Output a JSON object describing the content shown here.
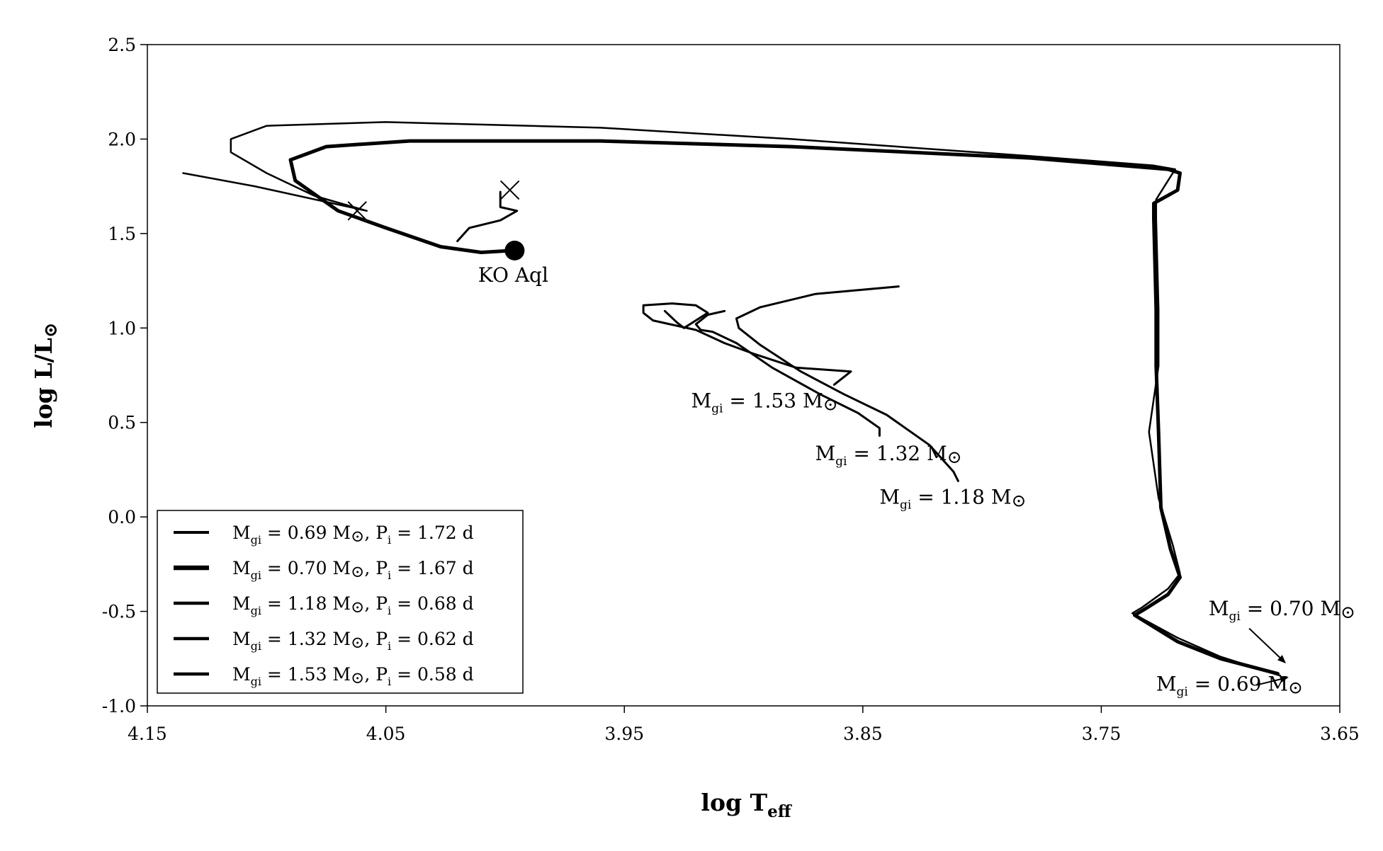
{
  "chart_data": {
    "type": "line",
    "xlabel": "log T",
    "xlabel_sub": "eff",
    "ylabel": "log L/L",
    "ylabel_symbol": "⊙",
    "xlim": [
      4.15,
      3.65
    ],
    "ylim": [
      -1.0,
      2.5
    ],
    "x_ticks": [
      "4.15",
      "4.05",
      "3.95",
      "3.85",
      "3.75",
      "3.65"
    ],
    "y_ticks": [
      "2.5",
      "2.0",
      "1.5",
      "1.0",
      "0.5",
      "0.0",
      "-0.5",
      "-1.0"
    ],
    "grid": false,
    "legend_placement": "lower-left",
    "series": [
      {
        "name": "M_gi = 0.69 M_sun, P_i = 1.72 d",
        "legend_parts": [
          "M",
          "gi",
          " = 0.69 M",
          "⊙",
          ", P",
          "i",
          " = 1.72 d"
        ],
        "color": "#000000",
        "width": 2.5,
        "points": [
          [
            3.675,
            -0.84
          ],
          [
            3.7,
            -0.74
          ],
          [
            3.718,
            -0.64
          ],
          [
            3.737,
            -0.51
          ],
          [
            3.733,
            -0.48
          ],
          [
            3.722,
            -0.38
          ],
          [
            3.717,
            -0.3
          ],
          [
            3.72,
            -0.15
          ],
          [
            3.726,
            0.1
          ],
          [
            3.73,
            0.45
          ],
          [
            3.726,
            0.8
          ],
          [
            3.726,
            1.1
          ],
          [
            3.727,
            1.58
          ],
          [
            3.727,
            1.68
          ],
          [
            3.722,
            1.78
          ],
          [
            3.719,
            1.84
          ],
          [
            3.728,
            1.86
          ],
          [
            3.78,
            1.91
          ],
          [
            3.88,
            2.0
          ],
          [
            3.96,
            2.06
          ],
          [
            4.05,
            2.09
          ],
          [
            4.1,
            2.07
          ],
          [
            4.115,
            2.0
          ],
          [
            4.115,
            1.93
          ],
          [
            4.1,
            1.82
          ],
          [
            4.08,
            1.7
          ],
          [
            4.058,
            1.62
          ],
          [
            4.105,
            1.75
          ],
          [
            4.135,
            1.82
          ]
        ]
      },
      {
        "name": "M_gi = 0.70 M_sun, P_i = 1.67 d",
        "legend_parts": [
          "M",
          "gi",
          " = 0.70 M",
          "⊙",
          ", P",
          "i",
          " = 1.67 d"
        ],
        "color": "#000000",
        "width": 5,
        "points": [
          [
            3.676,
            -0.83
          ],
          [
            3.7,
            -0.75
          ],
          [
            3.718,
            -0.66
          ],
          [
            3.736,
            -0.52
          ],
          [
            3.732,
            -0.49
          ],
          [
            3.722,
            -0.41
          ],
          [
            3.717,
            -0.32
          ],
          [
            3.721,
            -0.17
          ],
          [
            3.725,
            0.05
          ],
          [
            3.726,
            0.45
          ],
          [
            3.727,
            0.8
          ],
          [
            3.727,
            1.1
          ],
          [
            3.728,
            1.58
          ],
          [
            3.728,
            1.66
          ],
          [
            3.718,
            1.73
          ],
          [
            3.717,
            1.82
          ],
          [
            3.722,
            1.84
          ],
          [
            3.78,
            1.9
          ],
          [
            3.88,
            1.96
          ],
          [
            3.96,
            1.99
          ],
          [
            4.04,
            1.99
          ],
          [
            4.075,
            1.96
          ],
          [
            4.09,
            1.89
          ],
          [
            4.088,
            1.78
          ],
          [
            4.07,
            1.62
          ],
          [
            4.05,
            1.53
          ],
          [
            4.027,
            1.43
          ],
          [
            4.01,
            1.4
          ],
          [
            3.997,
            1.41
          ]
        ]
      },
      {
        "name": "M_gi = 1.18 M_sun, P_i = 0.68 d",
        "legend_parts": [
          "M",
          "gi",
          " = 1.18 M",
          "⊙",
          ", P",
          "i",
          " = 0.68 d"
        ],
        "color": "#000000",
        "width": 3,
        "points": [
          [
            3.81,
            0.19
          ],
          [
            3.812,
            0.24
          ],
          [
            3.822,
            0.38
          ],
          [
            3.84,
            0.54
          ],
          [
            3.858,
            0.65
          ],
          [
            3.876,
            0.77
          ],
          [
            3.893,
            0.91
          ],
          [
            3.902,
            1.0
          ],
          [
            3.903,
            1.05
          ],
          [
            3.893,
            1.11
          ],
          [
            3.87,
            1.18
          ],
          [
            3.835,
            1.22
          ]
        ]
      },
      {
        "name": "M_gi = 1.32 M_sun, P_i = 0.62 d",
        "legend_parts": [
          "M",
          "gi",
          " = 1.32 M",
          "⊙",
          ", P",
          "i",
          " = 0.62 d"
        ],
        "color": "#000000",
        "width": 3,
        "points": [
          [
            3.843,
            0.43
          ],
          [
            3.843,
            0.47
          ],
          [
            3.852,
            0.55
          ],
          [
            3.868,
            0.65
          ],
          [
            3.888,
            0.79
          ],
          [
            3.903,
            0.92
          ],
          [
            3.913,
            0.98
          ],
          [
            3.918,
            0.99
          ],
          [
            3.92,
            1.02
          ],
          [
            3.915,
            1.07
          ],
          [
            3.908,
            1.09
          ]
        ]
      },
      {
        "name": "M_gi = 1.53 M_sun, P_i = 0.58 d",
        "legend_parts": [
          "M",
          "gi",
          " = 1.53 M",
          "⊙",
          ", P",
          "i",
          " = 0.58 d"
        ],
        "color": "#000000",
        "width": 3,
        "points": [
          [
            3.862,
            0.7
          ],
          [
            3.855,
            0.77
          ],
          [
            3.878,
            0.79
          ],
          [
            3.895,
            0.86
          ],
          [
            3.908,
            0.92
          ],
          [
            3.92,
            0.99
          ],
          [
            3.931,
            1.02
          ],
          [
            3.938,
            1.04
          ],
          [
            3.942,
            1.08
          ],
          [
            3.942,
            1.12
          ],
          [
            3.93,
            1.13
          ],
          [
            3.92,
            1.12
          ],
          [
            3.915,
            1.08
          ],
          [
            3.925,
            1.0
          ],
          [
            3.928,
            1.03
          ],
          [
            3.933,
            1.09
          ]
        ]
      },
      {
        "name": "KO Aql secondary",
        "legend": false,
        "color": "#000000",
        "width": 3,
        "points": [
          [
            4.02,
            1.46
          ],
          [
            4.015,
            1.53
          ],
          [
            4.002,
            1.57
          ],
          [
            3.995,
            1.62
          ],
          [
            4.002,
            1.64
          ],
          [
            4.002,
            1.72
          ]
        ]
      }
    ],
    "markers": [
      {
        "label": "KO Aql",
        "x": 3.996,
        "y": 1.41,
        "shape": "filled-circle"
      },
      {
        "x": 4.062,
        "y": 1.62,
        "shape": "cross"
      },
      {
        "x": 3.998,
        "y": 1.73,
        "shape": "cross"
      }
    ],
    "annotations": [
      {
        "parts": [
          "M",
          "gi",
          " = 1.53 M",
          "⊙"
        ],
        "x": 3.922,
        "y": 0.58
      },
      {
        "parts": [
          "M",
          "gi",
          " = 1.32 M",
          "⊙"
        ],
        "x": 3.87,
        "y": 0.3
      },
      {
        "parts": [
          "M",
          "gi",
          " = 1.18 M",
          "⊙"
        ],
        "x": 3.843,
        "y": 0.07
      },
      {
        "parts": [
          "M",
          "gi",
          " = 0.70 M",
          "⊙"
        ],
        "x": 3.705,
        "y": -0.52
      },
      {
        "parts": [
          "M",
          "gi",
          " = 0.69 M",
          "⊙"
        ],
        "x": 3.727,
        "y": -0.92
      }
    ],
    "arrows": [
      {
        "from": [
          3.688,
          -0.59
        ],
        "to": [
          3.673,
          -0.77
        ]
      },
      {
        "from": [
          3.685,
          -0.89
        ],
        "to": [
          3.672,
          -0.85
        ]
      }
    ]
  }
}
